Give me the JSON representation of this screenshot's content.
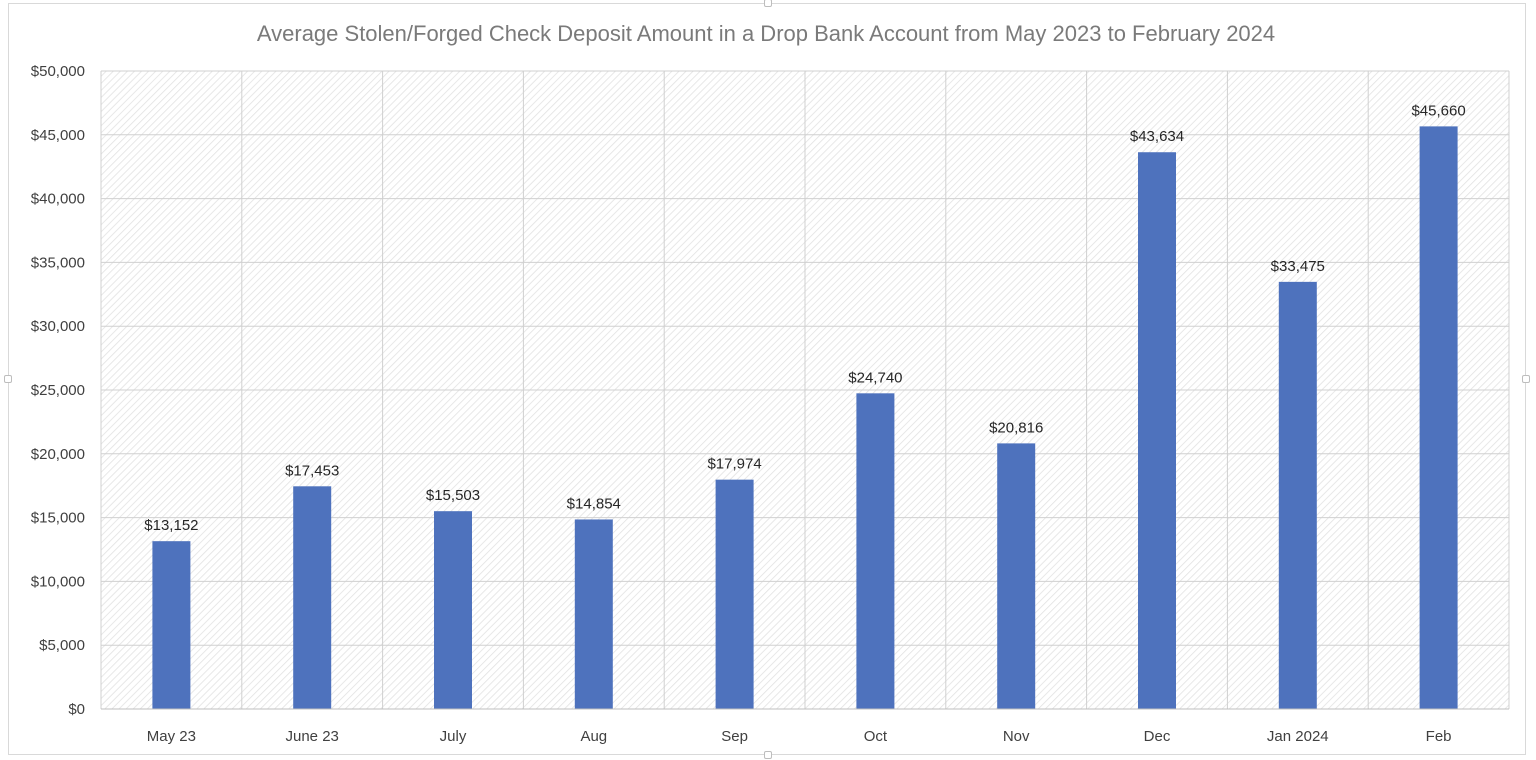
{
  "chart_data": {
    "type": "bar",
    "title": "Average Stolen/Forged Check Deposit Amount in a Drop Bank Account from May 2023 to February 2024",
    "categories": [
      "May 23",
      "June 23",
      "July",
      "Aug",
      "Sep",
      "Oct",
      "Nov",
      "Dec",
      "Jan 2024",
      "Feb"
    ],
    "values": [
      13152,
      17453,
      15503,
      14854,
      17974,
      24740,
      20816,
      43634,
      33475,
      45660
    ],
    "data_labels": [
      "$13,152",
      "$17,453",
      "$15,503",
      "$14,854",
      "$17,974",
      "$24,740",
      "$20,816",
      "$43,634",
      "$33,475",
      "$45,660"
    ],
    "y_ticks": [
      0,
      5000,
      10000,
      15000,
      20000,
      25000,
      30000,
      35000,
      40000,
      45000,
      50000
    ],
    "y_tick_labels": [
      "$0",
      "$5,000",
      "$10,000",
      "$15,000",
      "$20,000",
      "$25,000",
      "$30,000",
      "$35,000",
      "$40,000",
      "$45,000",
      "$50,000"
    ],
    "ylim": [
      0,
      50000
    ],
    "xlabel": "",
    "ylabel": "",
    "grid": true,
    "legend": "none",
    "colors": {
      "bar": "#4e72bd",
      "grid": "#d0d0d0",
      "plot_pattern": "#e2e2e2"
    }
  }
}
